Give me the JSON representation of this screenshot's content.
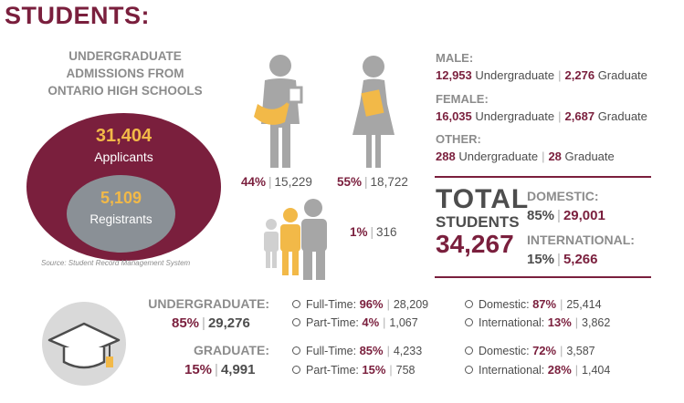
{
  "title": "STUDENTS:",
  "admissions": {
    "heading_lines": [
      "UNDERGRADUATE",
      "ADMISSIONS FROM",
      "ONTARIO HIGH SCHOOLS"
    ],
    "applicants_number": "31,404",
    "applicants_label": "Applicants",
    "registrants_number": "5,109",
    "registrants_label": "Registrants",
    "source": "Source: Student Record Management System"
  },
  "gender_figures": {
    "male": {
      "percent": "44%",
      "count": "15,229"
    },
    "female": {
      "percent": "55%",
      "count": "18,722"
    },
    "other": {
      "percent": "1%",
      "count": "316"
    }
  },
  "gender_breakdown": {
    "male": {
      "label": "MALE:",
      "undergrad_count": "12,953",
      "undergrad_label": "Undergraduate",
      "grad_count": "2,276",
      "grad_label": "Graduate"
    },
    "female": {
      "label": "FEMALE:",
      "undergrad_count": "16,035",
      "undergrad_label": "Undergraduate",
      "grad_count": "2,687",
      "grad_label": "Graduate"
    },
    "other": {
      "label": "OTHER:",
      "undergrad_count": "288",
      "undergrad_label": "Undergraduate",
      "grad_count": "28",
      "grad_label": "Graduate"
    }
  },
  "total": {
    "line1": "TOTAL",
    "line2": "STUDENTS",
    "number": "34,267",
    "domestic": {
      "label": "DOMESTIC:",
      "percent": "85%",
      "count": "29,001"
    },
    "international": {
      "label": "INTERNATIONAL:",
      "percent": "15%",
      "count": "5,266"
    }
  },
  "programs": {
    "undergraduate": {
      "label": "UNDERGRADUATE:",
      "percent": "85%",
      "count": "29,276",
      "full_time": {
        "label": "Full-Time:",
        "percent": "96%",
        "count": "28,209"
      },
      "part_time": {
        "label": "Part-Time:",
        "percent": "4%",
        "count": "1,067"
      },
      "domestic": {
        "label": "Domestic:",
        "percent": "87%",
        "count": "25,414"
      },
      "international": {
        "label": "International:",
        "percent": "13%",
        "count": "3,862"
      }
    },
    "graduate": {
      "label": "GRADUATE:",
      "percent": "15%",
      "count": "4,991",
      "full_time": {
        "label": "Full-Time:",
        "percent": "85%",
        "count": "4,233"
      },
      "part_time": {
        "label": "Part-Time:",
        "percent": "15%",
        "count": "758"
      },
      "domestic": {
        "label": "Domestic:",
        "percent": "72%",
        "count": "3,587"
      },
      "international": {
        "label": "International:",
        "percent": "28%",
        "count": "1,404"
      }
    }
  },
  "colors": {
    "maroon": "#7a1f3d",
    "gold": "#f2b948",
    "gray": "#8c8c8c",
    "figure_gray": "#a6a6a6",
    "registrant_gray": "#8a9096"
  },
  "icons": {
    "male": "male-student-icon",
    "female": "female-student-icon",
    "other": "group-of-people-icon",
    "grad": "graduation-cap-icon"
  }
}
